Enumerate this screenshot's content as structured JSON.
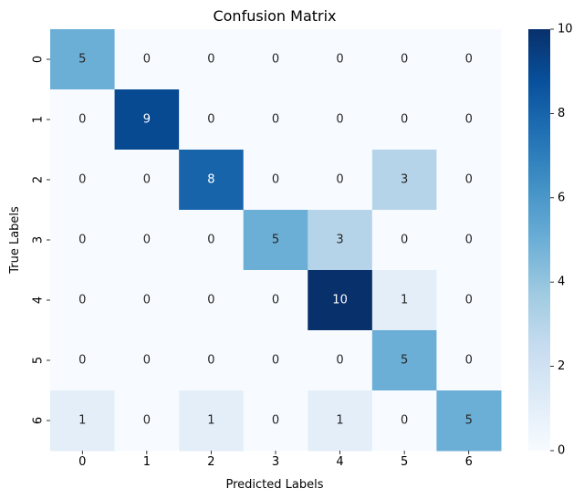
{
  "chart_data": {
    "type": "heatmap",
    "title": "Confusion Matrix",
    "xlabel": "Predicted Labels",
    "ylabel": "True Labels",
    "x_categories": [
      "0",
      "1",
      "2",
      "3",
      "4",
      "5",
      "6"
    ],
    "y_categories": [
      "0",
      "1",
      "2",
      "3",
      "4",
      "5",
      "6"
    ],
    "values": [
      [
        5,
        0,
        0,
        0,
        0,
        0,
        0
      ],
      [
        0,
        9,
        0,
        0,
        0,
        0,
        0
      ],
      [
        0,
        0,
        8,
        0,
        0,
        3,
        0
      ],
      [
        0,
        0,
        0,
        5,
        3,
        0,
        0
      ],
      [
        0,
        0,
        0,
        0,
        10,
        1,
        0
      ],
      [
        0,
        0,
        0,
        0,
        0,
        5,
        0
      ],
      [
        1,
        0,
        1,
        0,
        1,
        0,
        5
      ]
    ],
    "colorscale": "Blues",
    "colorbar": {
      "range": [
        0,
        10
      ],
      "ticks": [
        "0",
        "2",
        "4",
        "6",
        "8",
        "10"
      ]
    },
    "annotated": true
  }
}
